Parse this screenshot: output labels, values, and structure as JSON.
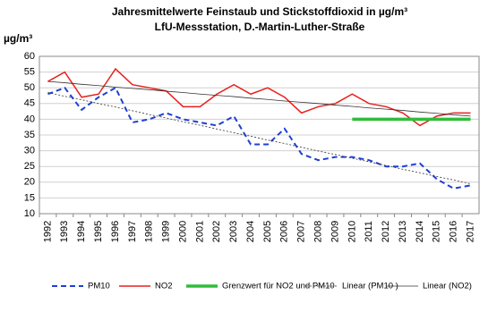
{
  "chart_data": {
    "type": "line",
    "title": "Jahresmittelwerte Feinstaub und Stickstoffdioxid in µg/m³",
    "subtitle": "LfU-Messstation, D.-Martin-Luther-Straße",
    "y_label": "µg/m³",
    "categories": [
      "1992",
      "1993",
      "1994",
      "1995",
      "1996",
      "1997",
      "1998",
      "1999",
      "2000",
      "2001",
      "2002",
      "2003",
      "2004",
      "2005",
      "2006",
      "2007",
      "2008",
      "2009",
      "2010",
      "2011",
      "2012",
      "2013",
      "2014",
      "2015",
      "2016",
      "2017"
    ],
    "ylim": [
      10,
      60
    ],
    "yticks": [
      10,
      15,
      20,
      25,
      30,
      35,
      40,
      45,
      50,
      55,
      60
    ],
    "grid": true,
    "series": [
      {
        "name": "PM10",
        "color": "#1f3fd6",
        "width": 2,
        "dash": "6 4",
        "values": [
          48,
          50,
          43,
          47,
          50,
          39,
          40,
          42,
          40,
          39,
          38,
          41,
          32,
          32,
          37,
          29,
          27,
          28,
          28,
          27,
          25,
          25,
          26,
          21,
          18,
          19
        ]
      },
      {
        "name": "NO2",
        "color": "#e8201c",
        "width": 1.5,
        "dash": "none",
        "values": [
          52,
          55,
          47,
          48,
          56,
          51,
          50,
          49,
          44,
          44,
          48,
          51,
          48,
          50,
          47,
          42,
          44,
          45,
          48,
          45,
          44,
          42,
          38,
          41,
          42,
          42
        ]
      },
      {
        "name": "Grenzwert für NO2 und PM10",
        "color": "#2ebd3a",
        "width": 3.5,
        "dash": "none",
        "values": [
          null,
          null,
          null,
          null,
          null,
          null,
          null,
          null,
          null,
          null,
          null,
          null,
          null,
          null,
          null,
          null,
          null,
          null,
          40,
          40,
          40,
          40,
          40,
          40,
          40,
          40
        ]
      },
      {
        "name": "Linear (PM10 )",
        "color": "#333333",
        "width": 0.8,
        "dash": "2 2",
        "values": [
          48.5,
          47.3,
          46.2,
          45.0,
          43.9,
          42.7,
          41.5,
          40.4,
          39.2,
          38.1,
          36.9,
          35.7,
          34.6,
          33.4,
          32.3,
          31.1,
          29.9,
          28.8,
          27.6,
          26.5,
          25.3,
          24.1,
          23.0,
          21.8,
          20.7,
          19.5
        ]
      },
      {
        "name": "Linear (NO2)",
        "color": "#333333",
        "width": 0.8,
        "dash": "none",
        "values": [
          52.0,
          51.6,
          51.1,
          50.7,
          50.2,
          49.8,
          49.4,
          48.9,
          48.5,
          48.0,
          47.6,
          47.2,
          46.7,
          46.3,
          45.8,
          45.4,
          45.0,
          44.5,
          44.1,
          43.6,
          43.2,
          42.8,
          42.3,
          41.9,
          41.4,
          41.0
        ]
      }
    ]
  }
}
